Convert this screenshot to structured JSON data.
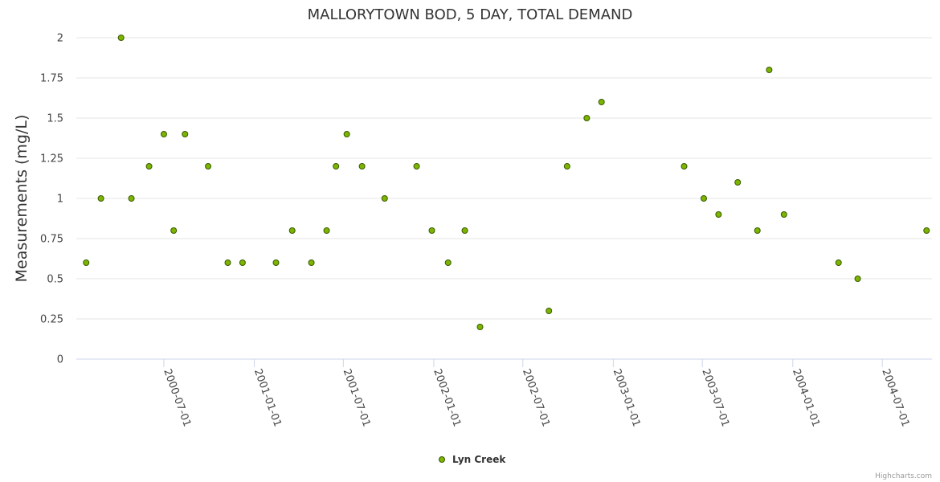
{
  "chart_data": {
    "type": "scatter",
    "title": "MALLORYTOWN BOD, 5 DAY, TOTAL DEMAND",
    "ylabel": "Measurements (mg/L)",
    "xlabel": "",
    "ylim": [
      0,
      2
    ],
    "yticks": [
      "0",
      "0.25",
      "0.5",
      "0.75",
      "1",
      "1.25",
      "1.5",
      "1.75",
      "2"
    ],
    "xlim": [
      "2000-01-05",
      "2004-10-10"
    ],
    "xticks": [
      "2000-07-01",
      "2001-01-01",
      "2001-07-01",
      "2002-01-01",
      "2002-07-01",
      "2003-01-01",
      "2003-07-01",
      "2004-01-01",
      "2004-07-01"
    ],
    "grid": true,
    "legend_position": "bottom-center",
    "series": [
      {
        "name": "Lyn Creek",
        "color": "#7cb500",
        "marker_outline": "#3a5a00",
        "points": [
          {
            "x": "2000-01-25",
            "y": 0.6
          },
          {
            "x": "2000-02-24",
            "y": 1.0
          },
          {
            "x": "2000-04-05",
            "y": 2.0
          },
          {
            "x": "2000-04-26",
            "y": 1.0
          },
          {
            "x": "2000-06-01",
            "y": 1.2
          },
          {
            "x": "2000-07-01",
            "y": 1.4
          },
          {
            "x": "2000-07-21",
            "y": 0.8
          },
          {
            "x": "2000-08-13",
            "y": 1.4
          },
          {
            "x": "2000-09-29",
            "y": 1.2
          },
          {
            "x": "2000-11-08",
            "y": 0.6
          },
          {
            "x": "2000-12-08",
            "y": 0.6
          },
          {
            "x": "2001-02-14",
            "y": 0.6
          },
          {
            "x": "2001-03-19",
            "y": 0.8
          },
          {
            "x": "2001-04-27",
            "y": 0.6
          },
          {
            "x": "2001-05-28",
            "y": 0.8
          },
          {
            "x": "2001-06-16",
            "y": 1.2
          },
          {
            "x": "2001-07-08",
            "y": 1.4
          },
          {
            "x": "2001-08-08",
            "y": 1.2
          },
          {
            "x": "2001-09-23",
            "y": 1.0
          },
          {
            "x": "2001-11-27",
            "y": 1.2
          },
          {
            "x": "2001-12-28",
            "y": 0.8
          },
          {
            "x": "2002-01-30",
            "y": 0.6
          },
          {
            "x": "2002-03-05",
            "y": 0.8
          },
          {
            "x": "2002-04-05",
            "y": 0.2
          },
          {
            "x": "2002-08-23",
            "y": 0.3
          },
          {
            "x": "2002-09-29",
            "y": 1.2
          },
          {
            "x": "2002-11-08",
            "y": 1.5
          },
          {
            "x": "2002-12-08",
            "y": 1.6
          },
          {
            "x": "2003-05-25",
            "y": 1.2
          },
          {
            "x": "2003-07-04",
            "y": 1.0
          },
          {
            "x": "2003-08-03",
            "y": 0.9
          },
          {
            "x": "2003-09-11",
            "y": 1.1
          },
          {
            "x": "2003-10-21",
            "y": 0.8
          },
          {
            "x": "2003-11-14",
            "y": 1.8
          },
          {
            "x": "2003-12-14",
            "y": 0.9
          },
          {
            "x": "2004-04-03",
            "y": 0.6
          },
          {
            "x": "2004-05-12",
            "y": 0.5
          },
          {
            "x": "2004-09-29",
            "y": 0.8
          }
        ]
      }
    ]
  },
  "credit": "Highcharts.com"
}
